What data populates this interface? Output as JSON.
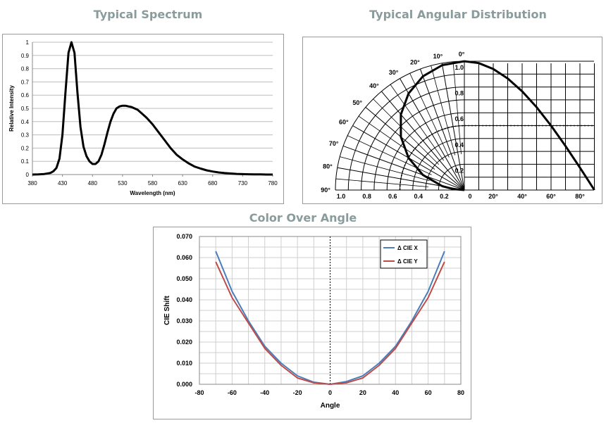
{
  "titles": {
    "spectrum": "Typical Spectrum",
    "angular": "Typical Angular Distribution",
    "color": "Color Over Angle"
  },
  "chart_data": [
    {
      "type": "line",
      "title": "Typical Spectrum",
      "xlabel": "Wavelength (nm)",
      "ylabel": "Relative Intensity",
      "xlim": [
        380,
        780
      ],
      "ylim": [
        0,
        1
      ],
      "xticks": [
        "380",
        "430",
        "480",
        "530",
        "580",
        "630",
        "680",
        "730",
        "780"
      ],
      "yticks": [
        "0",
        "0.1",
        "0.2",
        "0.3",
        "0.4",
        "0.5",
        "0.6",
        "0.7",
        "0.8",
        "0.9",
        "1"
      ],
      "grid": "horizontal",
      "series": [
        {
          "color": "#000000",
          "x": [
            380,
            390,
            400,
            410,
            415,
            420,
            425,
            430,
            435,
            440,
            445,
            450,
            455,
            460,
            465,
            470,
            475,
            480,
            485,
            490,
            495,
            500,
            505,
            510,
            515,
            520,
            525,
            530,
            535,
            540,
            545,
            550,
            555,
            560,
            570,
            580,
            590,
            600,
            610,
            620,
            630,
            640,
            650,
            660,
            670,
            680,
            690,
            700,
            710,
            720,
            730,
            740,
            750,
            760,
            770,
            780
          ],
          "y": [
            0,
            0.001,
            0.004,
            0.012,
            0.025,
            0.05,
            0.12,
            0.3,
            0.62,
            0.92,
            1.0,
            0.92,
            0.62,
            0.36,
            0.21,
            0.14,
            0.1,
            0.08,
            0.08,
            0.1,
            0.15,
            0.23,
            0.32,
            0.4,
            0.46,
            0.5,
            0.515,
            0.52,
            0.52,
            0.515,
            0.51,
            0.5,
            0.49,
            0.47,
            0.43,
            0.38,
            0.32,
            0.26,
            0.2,
            0.15,
            0.115,
            0.085,
            0.06,
            0.045,
            0.032,
            0.023,
            0.016,
            0.011,
            0.008,
            0.005,
            0.003,
            0.002,
            0.001,
            0.001,
            0.0,
            0.0
          ]
        }
      ]
    },
    {
      "type": "polar",
      "title": "Typical Angular Distribution",
      "angle_labels": [
        "0°",
        "10°",
        "20°",
        "30°",
        "40°",
        "50°",
        "60°",
        "70°",
        "80°",
        "90°"
      ],
      "radius_labels": [
        "0.2",
        "0.4",
        "0.6",
        "0.8",
        "1.0"
      ],
      "left_axis_labels": [
        "1.0",
        "0.8",
        "0.6",
        "0.4",
        "0.2",
        "0"
      ],
      "right_axis_labels": [
        "20°",
        "40°",
        "60°",
        "80°"
      ],
      "series": [
        {
          "angle_deg": [
            0,
            10,
            20,
            30,
            40,
            50,
            60,
            70,
            80,
            85,
            90
          ],
          "intensity": [
            1.0,
            0.985,
            0.94,
            0.866,
            0.766,
            0.643,
            0.5,
            0.342,
            0.174,
            0.087,
            0.0
          ]
        }
      ]
    },
    {
      "type": "line",
      "title": "",
      "xlabel": "Angle",
      "ylabel": "CIE Shift",
      "xlim": [
        -80,
        80
      ],
      "ylim": [
        0,
        0.07
      ],
      "xticks": [
        "-80",
        "-60",
        "-40",
        "-20",
        "0",
        "20",
        "40",
        "60",
        "80"
      ],
      "yticks": [
        "0.000",
        "0.010",
        "0.020",
        "0.030",
        "0.040",
        "0.050",
        "0.060",
        "0.070"
      ],
      "grid": "both",
      "legend": "top-right",
      "x": [
        -70,
        -60,
        -50,
        -40,
        -30,
        -20,
        -10,
        0,
        10,
        20,
        30,
        40,
        50,
        60,
        70
      ],
      "series": [
        {
          "name": "Δ CIE X",
          "color": "#4a7ebb",
          "values": [
            0.063,
            0.044,
            0.03,
            0.018,
            0.01,
            0.004,
            0.001,
            0.0,
            0.0013,
            0.004,
            0.01,
            0.018,
            0.03,
            0.044,
            0.063
          ]
        },
        {
          "name": "Δ CIE Y",
          "color": "#be4b48",
          "values": [
            0.058,
            0.041,
            0.029,
            0.017,
            0.009,
            0.003,
            0.0007,
            0.0,
            0.0007,
            0.003,
            0.009,
            0.017,
            0.029,
            0.041,
            0.058
          ]
        }
      ]
    }
  ]
}
